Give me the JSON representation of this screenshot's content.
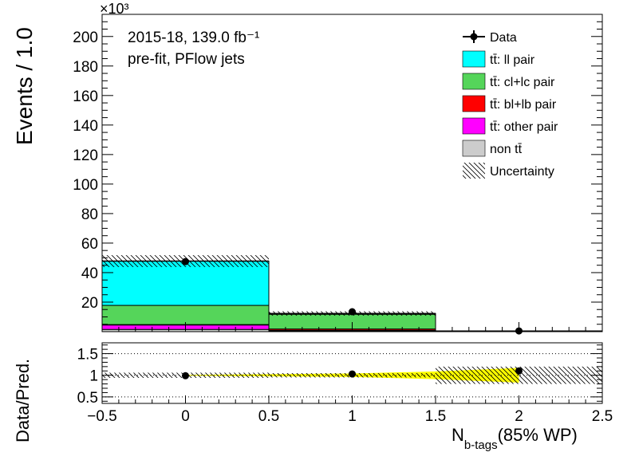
{
  "chart_data": [
    {
      "type": "bar",
      "stacked": true,
      "x_bins": [
        [
          -0.5,
          0.5
        ],
        [
          0.5,
          1.5
        ],
        [
          1.5,
          2.5
        ]
      ],
      "bin_centers": [
        0,
        1,
        2
      ],
      "xlim": [
        -0.5,
        2.5
      ],
      "ylim": [
        0,
        215
      ],
      "y_multiplier": "×10³",
      "ylabel": "Events / 1.0",
      "yticks": [
        20,
        40,
        60,
        80,
        100,
        120,
        140,
        160,
        180,
        200
      ],
      "annotations": [
        "2015-18, 139.0 fb⁻¹",
        "pre-fit, PFlow jets"
      ],
      "legend_position": "top-right",
      "legend": [
        {
          "label": "Data",
          "style": "marker"
        },
        {
          "label": "tt̄: ll pair",
          "color": "#00ffff"
        },
        {
          "label": "tt̄: cl+lc pair",
          "color": "#55d55a"
        },
        {
          "label": "tt̄: bl+lb pair",
          "color": "#ff0000"
        },
        {
          "label": "tt̄: other pair",
          "color": "#ff00ff"
        },
        {
          "label": "non tt̄",
          "color": "#cccccc"
        },
        {
          "label": "Uncertainty",
          "style": "hatch"
        }
      ],
      "series": [
        {
          "name": "non tt̄",
          "color": "#cccccc",
          "values": [
            1.5,
            0.5,
            0.0
          ]
        },
        {
          "name": "tt̄: other pair",
          "color": "#ff00ff",
          "values": [
            3.0,
            0.4,
            0.0
          ]
        },
        {
          "name": "tt̄: bl+lb pair",
          "color": "#ff0000",
          "values": [
            0.3,
            0.9,
            0.1
          ]
        },
        {
          "name": "tt̄: cl+lc pair",
          "color": "#55d55a",
          "values": [
            13.0,
            10.0,
            0.3
          ]
        },
        {
          "name": "tt̄: ll pair",
          "color": "#00ffff",
          "values": [
            30.0,
            0.5,
            0.0
          ]
        }
      ],
      "uncertainty": [
        4.0,
        1.5,
        0.2
      ],
      "data": {
        "name": "Data",
        "x": [
          0,
          1,
          2
        ],
        "y": [
          47.5,
          13.5,
          0.5
        ]
      }
    },
    {
      "type": "scatter",
      "ylabel": "Data/Pred.",
      "xlabel_main": "N",
      "xlabel_sub": "b-tags",
      "xlabel_suffix": "(85% WP)",
      "xlim": [
        -0.5,
        2.5
      ],
      "ylim": [
        0.35,
        1.75
      ],
      "yticks": [
        0.5,
        1,
        1.5
      ],
      "xticks": [
        -0.5,
        0,
        0.5,
        1,
        1.5,
        2,
        2.5
      ],
      "reference_lines": [
        0.5,
        1,
        1.5
      ],
      "ratio": {
        "x": [
          0,
          1,
          2
        ],
        "y": [
          0.99,
          1.03,
          1.1
        ]
      },
      "syst_band": {
        "color": "#ffff00",
        "x": [
          0.0,
          0.5,
          1.0,
          1.5,
          2.0
        ],
        "lo": [
          0.99,
          0.975,
          0.96,
          0.91,
          0.83
        ],
        "hi": [
          1.01,
          1.025,
          1.04,
          1.09,
          1.17
        ]
      },
      "stat_hatch": [
        0.06,
        0.05,
        0.2
      ]
    }
  ]
}
